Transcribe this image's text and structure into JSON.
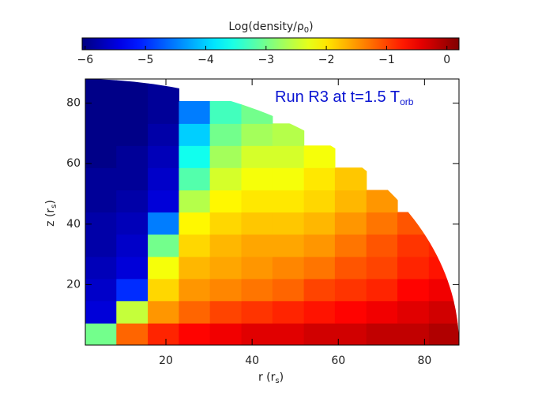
{
  "chart_data": {
    "type": "heatmap",
    "colormap": "jet",
    "annotation": {
      "text": "Run R3 at t=1.5 T",
      "sub": "orb",
      "color": "#0a14d2"
    },
    "colorbar": {
      "label": {
        "text": "Log(density/ρ",
        "sub": "0",
        "after": ")"
      },
      "lim": [
        -6.05,
        0.2
      ],
      "ticks": [
        {
          "value": -6,
          "label": "−6"
        },
        {
          "value": -5,
          "label": "−5"
        },
        {
          "value": -4,
          "label": "−4"
        },
        {
          "value": -3,
          "label": "−3"
        },
        {
          "value": -2,
          "label": "−2"
        },
        {
          "value": -1,
          "label": "−1"
        },
        0
      ]
    },
    "xlabel": {
      "text": "r (r",
      "sub": "s",
      "after": ")"
    },
    "ylabel": {
      "text": "z (r",
      "sub": "s",
      "after": ")"
    },
    "xlim": [
      1.3,
      88
    ],
    "ylim": [
      0,
      88
    ],
    "xticks": [
      20,
      40,
      60,
      80
    ],
    "yticks": [
      20,
      40,
      60,
      80
    ],
    "x_bins": [
      1.3,
      8.5,
      15.8,
      23,
      30.2,
      37.5,
      44.7,
      52,
      59.2,
      66.5,
      73.7,
      81,
      88
    ],
    "y_bins": [
      0,
      7.3,
      14.7,
      22,
      29.3,
      36.7,
      44,
      51.3,
      58.7,
      66,
      73.3,
      80.7,
      88
    ],
    "values": [
      [
        -3,
        -1.2,
        -0.8,
        -0.6,
        -0.5,
        -0.4,
        -0.4,
        -0.3,
        -0.3,
        -0.2,
        -0.2,
        -0.1
      ],
      [
        -5.5,
        -2.5,
        -1.5,
        -1.2,
        -1.0,
        -0.9,
        -0.8,
        -0.7,
        -0.6,
        -0.5,
        -0.4,
        -0.3
      ],
      [
        -5.6,
        -5.0,
        -1.9,
        -1.5,
        -1.4,
        -1.3,
        -1.2,
        -1.0,
        -0.9,
        -0.8,
        -0.6,
        -0.5
      ],
      [
        -5.7,
        -5.5,
        -2.2,
        -1.7,
        -1.6,
        -1.5,
        -1.4,
        -1.3,
        -1.1,
        -1.0,
        -0.8,
        -0.7
      ],
      [
        -5.8,
        -5.6,
        -3.0,
        -1.9,
        -1.7,
        -1.6,
        -1.6,
        -1.5,
        -1.3,
        -1.1,
        -0.9,
        -0.8
      ],
      [
        -5.8,
        -5.7,
        -4.5,
        -2.1,
        -1.9,
        -1.8,
        -1.8,
        -1.7,
        -1.5,
        -1.3,
        -1.1,
        -1.0
      ],
      [
        -5.9,
        -5.8,
        -5.5,
        -2.6,
        -2.1,
        -2.0,
        -2.0,
        -1.9,
        -1.7,
        -1.5,
        null,
        null
      ],
      [
        -5.9,
        -5.9,
        -5.6,
        -3.2,
        -2.4,
        -2.2,
        -2.2,
        -2.0,
        -1.8,
        null,
        null,
        null
      ],
      [
        -6.0,
        -5.9,
        -5.7,
        -3.6,
        -2.7,
        -2.4,
        -2.4,
        -2.2,
        null,
        null,
        null,
        null
      ],
      [
        -6.0,
        -6.0,
        -5.8,
        -4.0,
        -3.0,
        -2.7,
        -2.6,
        null,
        null,
        null,
        null,
        null
      ],
      [
        -6.0,
        -6.0,
        -5.9,
        -4.5,
        -3.3,
        -3.0,
        null,
        null,
        null,
        null,
        null,
        null
      ],
      [
        -6.0,
        -6.0,
        -5.9,
        null,
        null,
        null,
        null,
        null,
        null,
        null,
        null,
        null
      ]
    ]
  }
}
